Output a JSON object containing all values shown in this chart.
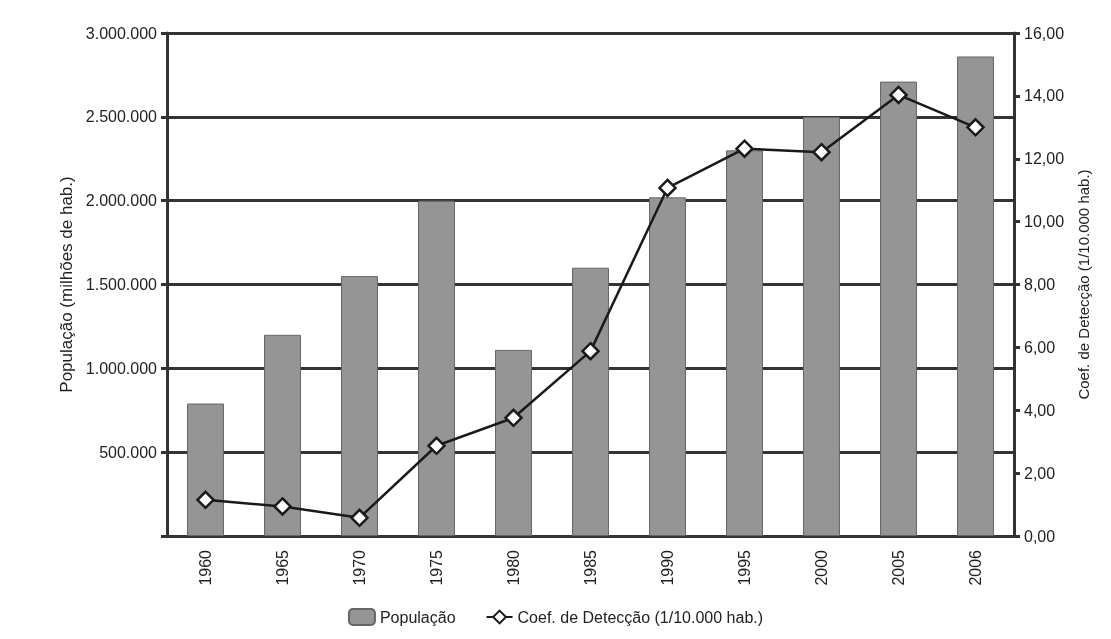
{
  "chart_data": {
    "type": "bar",
    "categories": [
      "1960",
      "1965",
      "1970",
      "1975",
      "1980",
      "1985",
      "1990",
      "1995",
      "2000",
      "2005",
      "2006"
    ],
    "series": [
      {
        "name": "População",
        "color": "#959595",
        "values": [
          790000,
          1200000,
          1550000,
          2000000,
          1110000,
          1600000,
          2020000,
          2300000,
          2500000,
          2710000,
          2860000
        ]
      },
      {
        "name": "Coef. de Detecção (1/10.000 hab.)",
        "type": "line",
        "axis": "y2",
        "color": "#1a1a1a",
        "marker": "diamond",
        "values": [
          1.15,
          0.94,
          0.58,
          2.87,
          3.76,
          5.88,
          11.07,
          12.32,
          12.21,
          14.03,
          13.0
        ]
      }
    ],
    "ylabel": "População (milhões de hab.)",
    "y2label": "Coef. de Detecção (1/10.000 hab.)",
    "ylim": [
      0,
      3000000
    ],
    "yticks": [
      {
        "value": 0,
        "label": null
      },
      {
        "value": 500000,
        "label": "500.000"
      },
      {
        "value": 1000000,
        "label": "1.000.000"
      },
      {
        "value": 1500000,
        "label": "1.500.000"
      },
      {
        "value": 2000000,
        "label": "2.000.000"
      },
      {
        "value": 2500000,
        "label": "2.500.000"
      },
      {
        "value": 3000000,
        "label": "3.000.000"
      }
    ],
    "y2lim": [
      0,
      16
    ],
    "y2ticks": [
      {
        "value": 0,
        "label": "0,00"
      },
      {
        "value": 2,
        "label": "2,00"
      },
      {
        "value": 4,
        "label": "4,00"
      },
      {
        "value": 6,
        "label": "6,00"
      },
      {
        "value": 8,
        "label": "8,00"
      },
      {
        "value": 10,
        "label": "10,00"
      },
      {
        "value": 12,
        "label": "12,00"
      },
      {
        "value": 14,
        "label": "14,00"
      },
      {
        "value": 16,
        "label": "16,00"
      }
    ],
    "grid": "y",
    "legend": "bottom"
  }
}
